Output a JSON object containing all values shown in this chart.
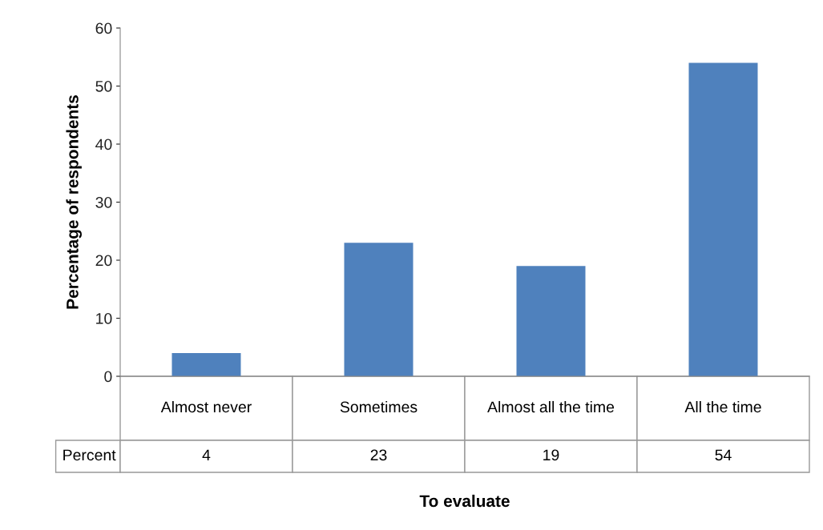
{
  "chart_data": {
    "type": "bar",
    "xlabel": "To evaluate",
    "ylabel": "Percentage of respondents",
    "categories": [
      "Almost never",
      "Sometimes",
      "Almost all the time",
      "All the time"
    ],
    "series": [
      {
        "name": "Percent",
        "color": "#4f81bd",
        "values": [
          4,
          23,
          19,
          54
        ]
      }
    ],
    "ylim": [
      0,
      60
    ],
    "yticks": [
      0,
      10,
      20,
      30,
      40,
      50,
      60
    ],
    "grid": false,
    "legend": false,
    "data_labels": true
  }
}
